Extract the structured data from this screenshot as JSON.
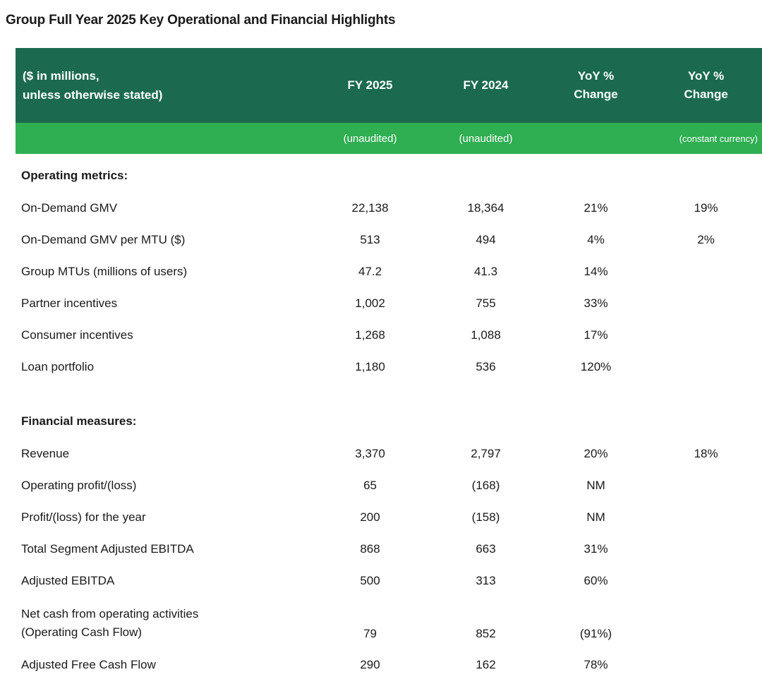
{
  "title": "Group Full Year 2025 Key Operational and Financial Highlights",
  "colors": {
    "header_green": "#1B6A4F",
    "subheader_green": "#2FAE52",
    "header_text": "#FFFFFF",
    "body_text": "#1A1A1A"
  },
  "table": {
    "header": {
      "label": "($ in millions,\nunless otherwise stated)",
      "col_fy2025": "FY 2025",
      "col_fy2024": "FY 2024",
      "col_yoy": "YoY %\nChange",
      "col_yoy_cc": "YoY %\nChange"
    },
    "subheader": {
      "fy2025_note": "(unaudited)",
      "fy2024_note": "(unaudited)",
      "constant_currency_note": "(constant currency)"
    },
    "sections": [
      {
        "name": "Operating metrics:",
        "rows": [
          {
            "label": "On-Demand GMV",
            "fy2025": "22,138",
            "fy2024": "18,364",
            "yoy": "21%",
            "yoy_cc": "19%"
          },
          {
            "label": "On-Demand GMV per MTU ($)",
            "fy2025": "513",
            "fy2024": "494",
            "yoy": "4%",
            "yoy_cc": "2%"
          },
          {
            "label": "Group MTUs (millions of users)",
            "fy2025": "47.2",
            "fy2024": "41.3",
            "yoy": "14%",
            "yoy_cc": ""
          },
          {
            "label": "Partner incentives",
            "fy2025": "1,002",
            "fy2024": "755",
            "yoy": "33%",
            "yoy_cc": ""
          },
          {
            "label": "Consumer incentives",
            "fy2025": "1,268",
            "fy2024": "1,088",
            "yoy": "17%",
            "yoy_cc": ""
          },
          {
            "label": "Loan portfolio",
            "fy2025": "1,180",
            "fy2024": "536",
            "yoy": "120%",
            "yoy_cc": ""
          }
        ]
      },
      {
        "name": "Financial measures:",
        "rows": [
          {
            "label": "Revenue",
            "fy2025": "3,370",
            "fy2024": "2,797",
            "yoy": "20%",
            "yoy_cc": "18%"
          },
          {
            "label": "Operating profit/(loss)",
            "fy2025": "65",
            "fy2024": "(168)",
            "yoy": "NM",
            "yoy_cc": ""
          },
          {
            "label": "Profit/(loss) for the year",
            "fy2025": "200",
            "fy2024": "(158)",
            "yoy": "NM",
            "yoy_cc": ""
          },
          {
            "label": "Total Segment Adjusted EBITDA",
            "fy2025": "868",
            "fy2024": "663",
            "yoy": "31%",
            "yoy_cc": ""
          },
          {
            "label": "Adjusted EBITDA",
            "fy2025": "500",
            "fy2024": "313",
            "yoy": "60%",
            "yoy_cc": ""
          },
          {
            "label": "Net cash from operating activities\n(Operating Cash Flow)",
            "fy2025": "79",
            "fy2024": "852",
            "yoy": "(91%)",
            "yoy_cc": ""
          },
          {
            "label": "Adjusted Free Cash Flow",
            "fy2025": "290",
            "fy2024": "162",
            "yoy": "78%",
            "yoy_cc": ""
          }
        ]
      }
    ]
  }
}
